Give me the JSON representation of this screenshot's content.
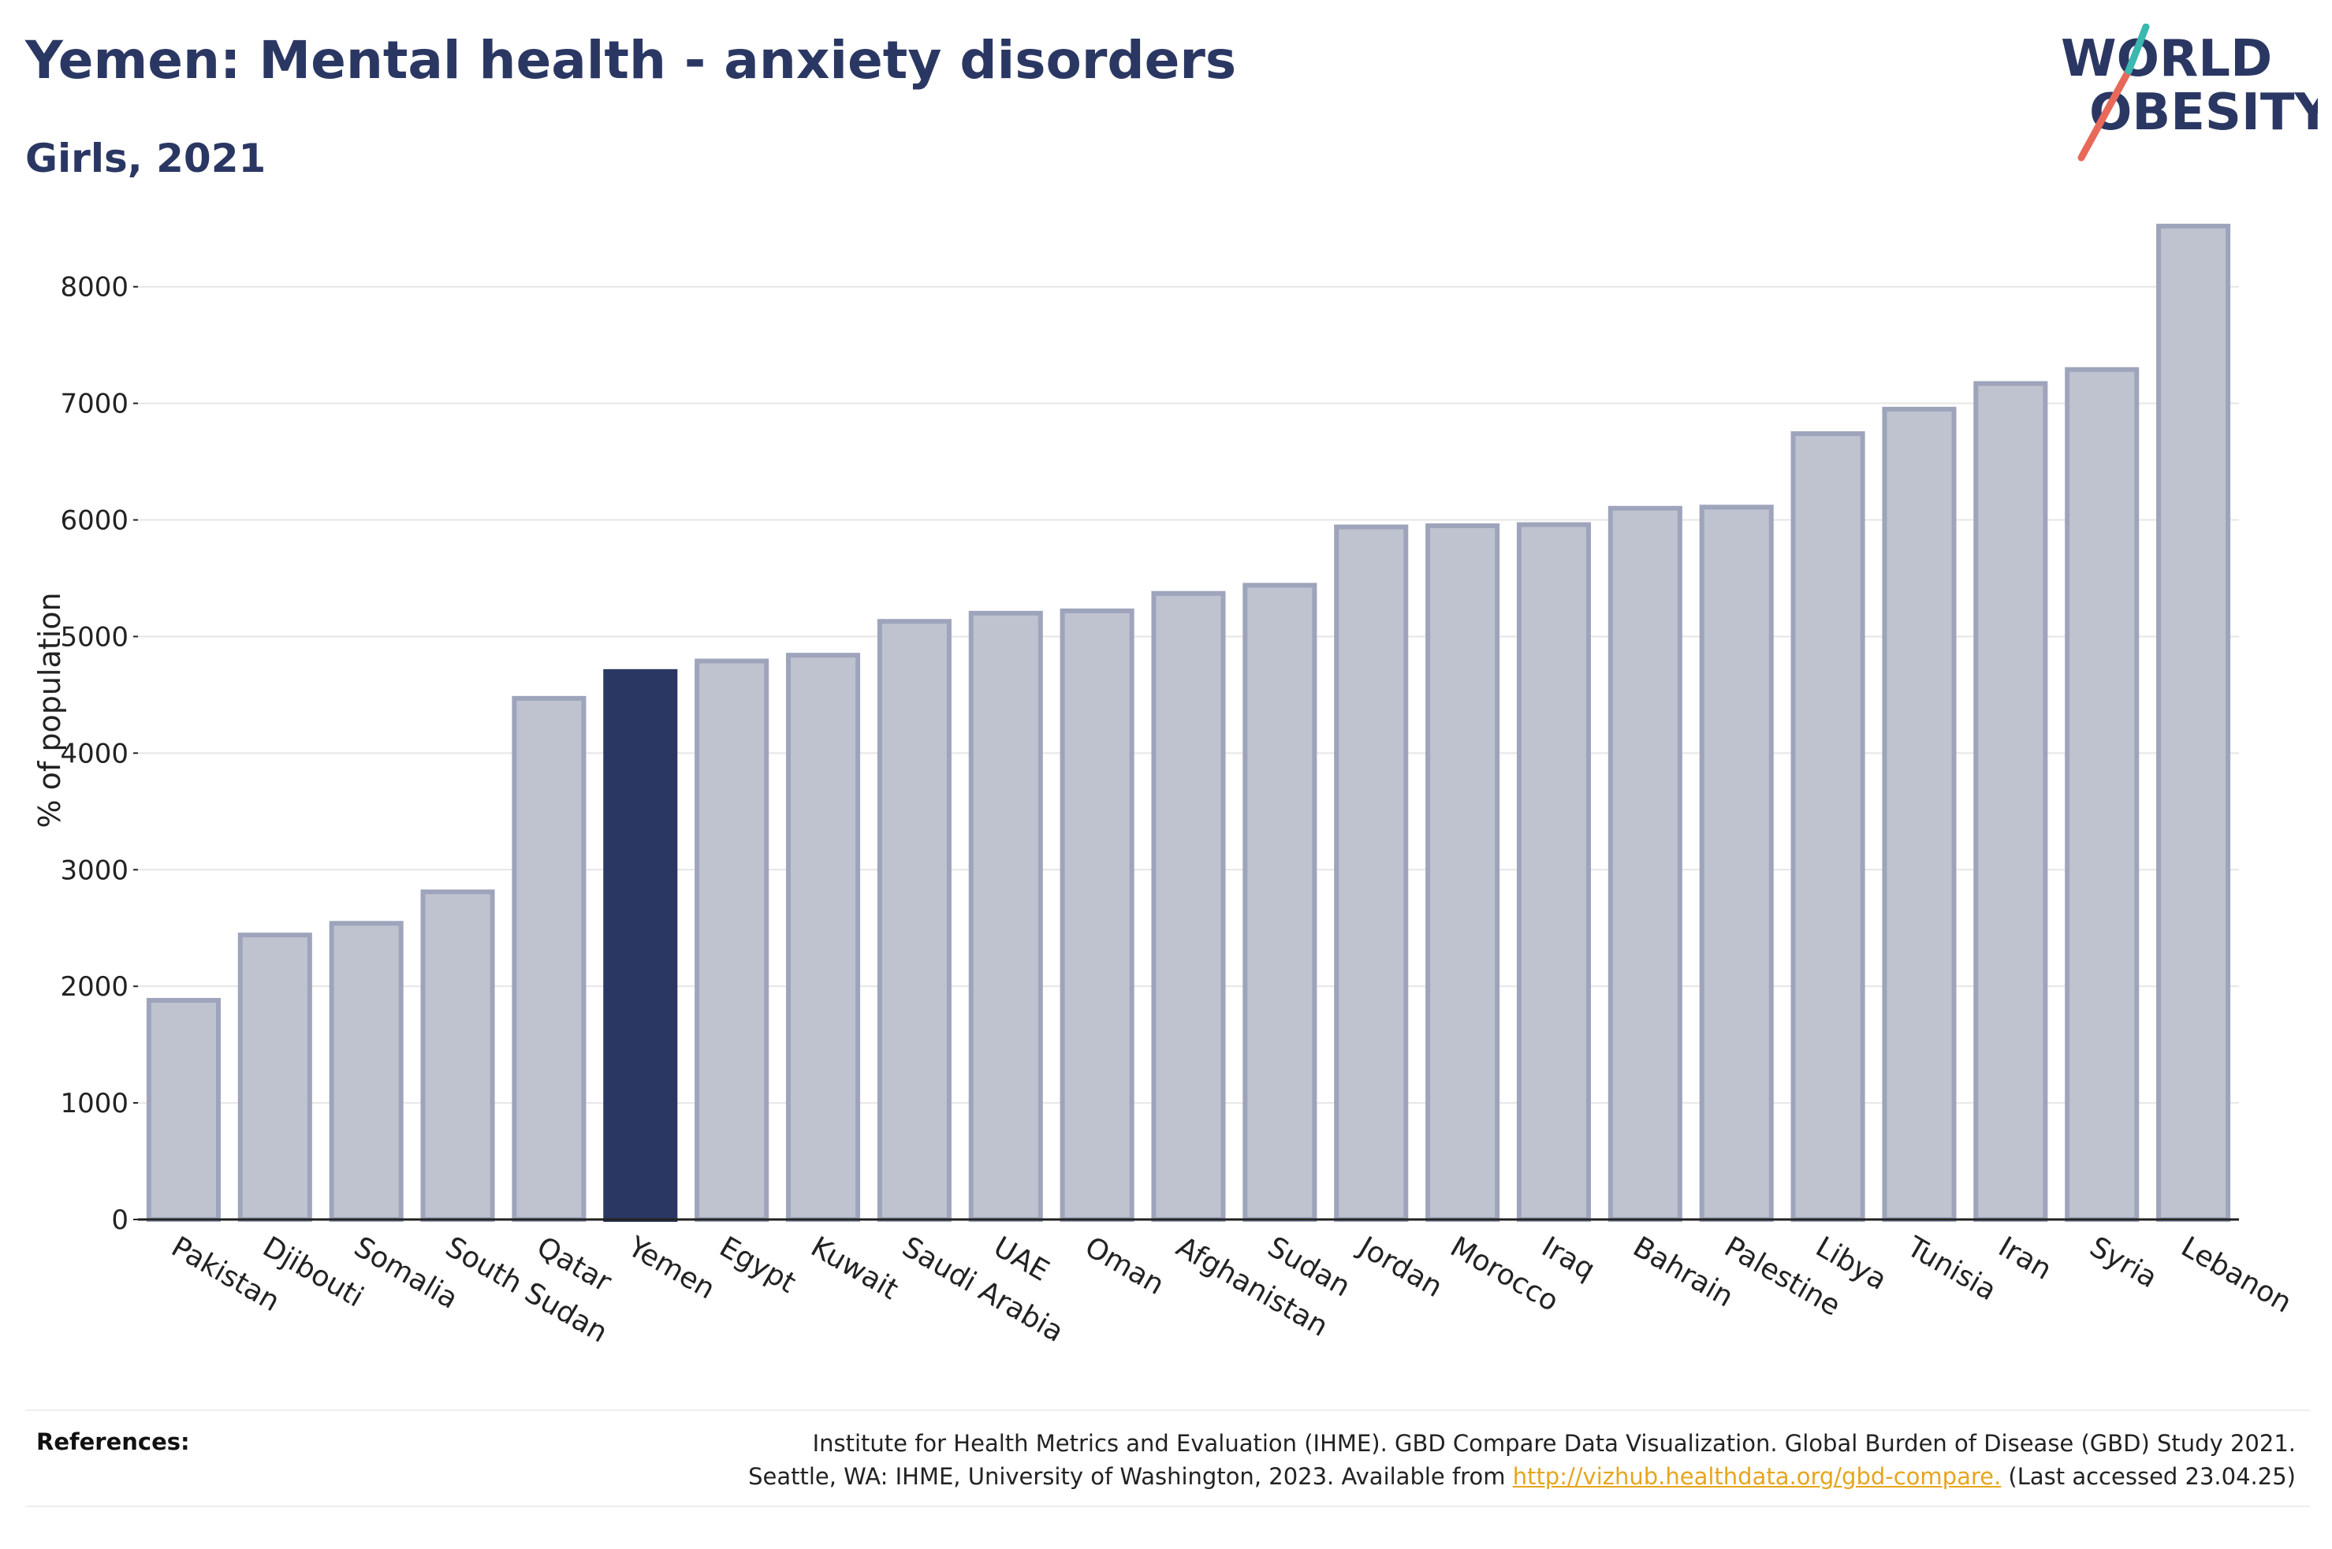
{
  "header": {
    "title": "Yemen: Mental health - anxiety disorders",
    "subtitle": "Girls, 2021"
  },
  "logo": {
    "line1": "WORLD",
    "line2": "OBESITY",
    "colors": {
      "text": "#2b3763",
      "slash_red": "#e8695a",
      "slash_teal": "#3bb8b0"
    }
  },
  "chart_data": {
    "type": "bar",
    "ylabel": "% of population",
    "ylim": [
      0,
      8600
    ],
    "yticks": [
      0,
      1000,
      2000,
      3000,
      4000,
      5000,
      6000,
      7000,
      8000
    ],
    "grid": true,
    "highlight": "Yemen",
    "colors": {
      "bar": "#bfc3d0",
      "bar_border": "#9ea4bb",
      "highlight": "#2b3763"
    },
    "categories": [
      "Pakistan",
      "Djibouti",
      "Somalia",
      "South Sudan",
      "Qatar",
      "Yemen",
      "Egypt",
      "Kuwait",
      "Saudi Arabia",
      "UAE",
      "Oman",
      "Afghanistan",
      "Sudan",
      "Jordan",
      "Morocco",
      "Iraq",
      "Bahrain",
      "Palestine",
      "Libya",
      "Tunisia",
      "Iran",
      "Syria",
      "Lebanon"
    ],
    "values": [
      1880,
      2440,
      2540,
      2810,
      4470,
      4700,
      4790,
      4840,
      5130,
      5200,
      5220,
      5370,
      5440,
      5940,
      5950,
      5960,
      6100,
      6110,
      6740,
      6950,
      7170,
      7290,
      8520
    ]
  },
  "references": {
    "label": "References:",
    "line1": "Institute for Health Metrics and Evaluation (IHME). GBD Compare Data Visualization. Global Burden of Disease (GBD) Study 2021.",
    "line2_prefix": "Seattle, WA: IHME, University of Washington, 2023. Available from ",
    "link_text": "http://vizhub.healthdata.org/gbd-compare.",
    "line2_suffix": " (Last accessed 23.04.25)"
  }
}
